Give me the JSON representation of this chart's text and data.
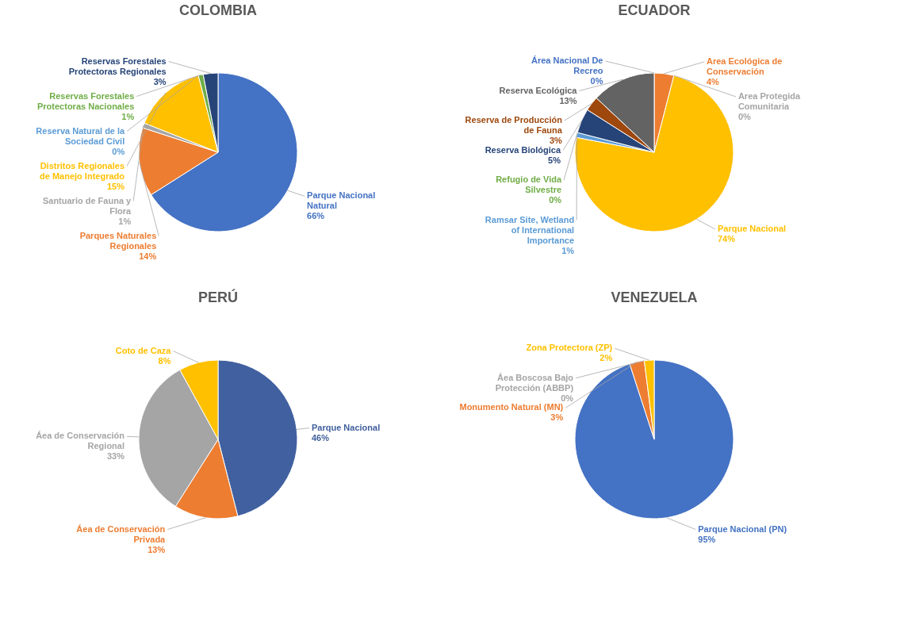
{
  "chart_data": [
    {
      "type": "pie",
      "title": "COLOMBIA",
      "categories": [
        "Parque Nacional Natural",
        "Parques Naturales Regionales",
        "Santuario de Fauna y Flora",
        "Distritos Regionales de Manejo Integrado",
        "Reserva Natural de la Sociedad Civil",
        "Reservas Forestales Protectoras Nacionales",
        "Reservas Forestales Protectoras Regionales"
      ],
      "values": [
        66,
        14,
        1,
        15,
        0,
        1,
        3
      ],
      "value_labels": [
        "66%",
        "14%",
        "1%",
        "15%",
        "0%",
        "1%",
        "3%"
      ],
      "colors": [
        "#4472c4",
        "#ed7d31",
        "#a5a5a5",
        "#ffc000",
        "#5b9bd5",
        "#70ad47",
        "#264478"
      ]
    },
    {
      "type": "pie",
      "title": "ECUADOR",
      "categories": [
        "Area Ecológica de Conservación",
        "Area Protegida Comunitaria",
        "Parque Nacional",
        "Ramsar Site, Wetland of International Importance",
        "Refugio de Vida Silvestre",
        "Reserva Biológica",
        "Reserva de Producción de Fauna",
        "Reserva Ecológica",
        "Área Nacional De Recreo"
      ],
      "values": [
        4,
        0,
        74,
        1,
        0,
        5,
        3,
        13,
        0
      ],
      "value_labels": [
        "4%",
        "0%",
        "74%",
        "1%",
        "0%",
        "5%",
        "3%",
        "13%",
        "0%"
      ],
      "colors": [
        "#ed7d31",
        "#a5a5a5",
        "#ffc000",
        "#5b9bd5",
        "#70ad47",
        "#264478",
        "#9e480e",
        "#636363",
        "#4472c4"
      ]
    },
    {
      "type": "pie",
      "title": "PERÚ",
      "categories": [
        "Parque Nacional",
        "Áea de Conservación Privada",
        "Áea de Conservación Regional",
        "Coto de Caza"
      ],
      "values": [
        46,
        13,
        33,
        8
      ],
      "value_labels": [
        "46%",
        "13%",
        "33%",
        "8%"
      ],
      "colors": [
        "#41609f",
        "#ed7d31",
        "#a5a5a5",
        "#ffc000"
      ]
    },
    {
      "type": "pie",
      "title": "VENEZUELA",
      "categories": [
        "Parque Nacional (PN)",
        "Monumento Natural (MN)",
        "Áea Boscosa Bajo Protección (ABBP)",
        "Zona Protectora (ZP)"
      ],
      "values": [
        95,
        3,
        0,
        2
      ],
      "value_labels": [
        "95%",
        "3%",
        "0%",
        "2%"
      ],
      "colors": [
        "#4472c4",
        "#ed7d31",
        "#a5a5a5",
        "#ffc000"
      ]
    }
  ]
}
